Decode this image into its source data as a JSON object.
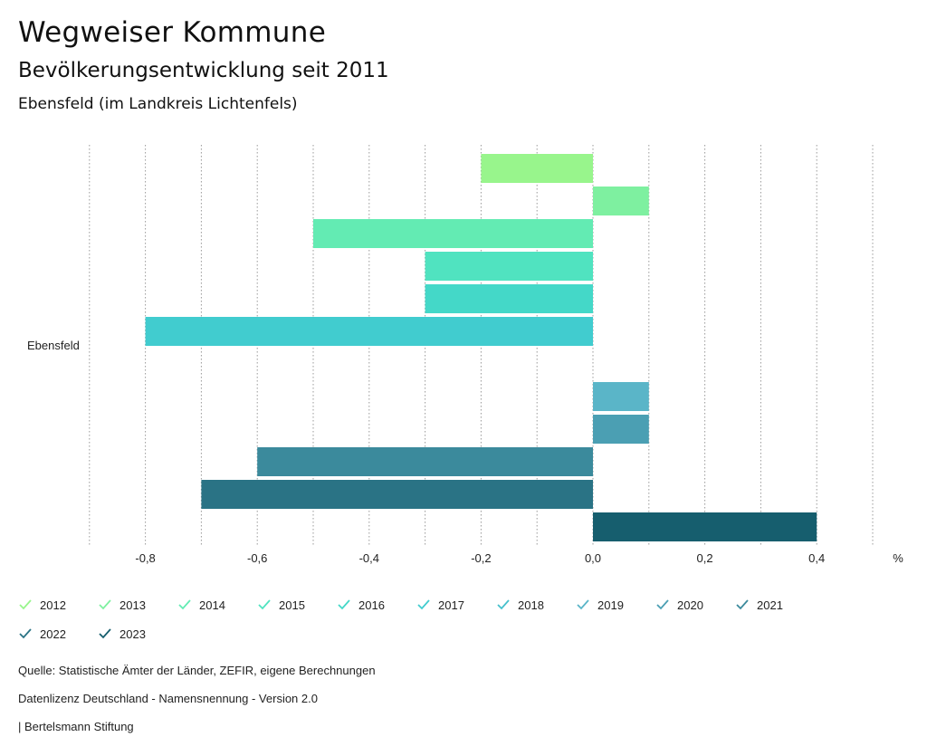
{
  "header": {
    "title": "Wegweiser Kommune",
    "subtitle": "Bevölkerungsentwicklung seit 2011",
    "region": "Ebensfeld (im Landkreis Lichtenfels)"
  },
  "chart_data": {
    "type": "bar",
    "orientation": "horizontal",
    "categories": [
      "Ebensfeld"
    ],
    "series": [
      {
        "name": "2012",
        "values": [
          -0.2
        ],
        "color": "#98f58c"
      },
      {
        "name": "2013",
        "values": [
          0.1
        ],
        "color": "#7ef0a0"
      },
      {
        "name": "2014",
        "values": [
          -0.5
        ],
        "color": "#63ebb3"
      },
      {
        "name": "2015",
        "values": [
          -0.3
        ],
        "color": "#50e3c0"
      },
      {
        "name": "2016",
        "values": [
          -0.3
        ],
        "color": "#44d8c8"
      },
      {
        "name": "2017",
        "values": [
          -0.8
        ],
        "color": "#41cccf"
      },
      {
        "name": "2018",
        "values": [
          0.0
        ],
        "color": "#45c0cc"
      },
      {
        "name": "2019",
        "values": [
          0.1
        ],
        "color": "#5ab5c8"
      },
      {
        "name": "2020",
        "values": [
          0.1
        ],
        "color": "#4b9fb3"
      },
      {
        "name": "2021",
        "values": [
          -0.6
        ],
        "color": "#3b8a9c"
      },
      {
        "name": "2022",
        "values": [
          -0.7
        ],
        "color": "#2a7385"
      },
      {
        "name": "2023",
        "values": [
          0.4
        ],
        "color": "#165e6e"
      }
    ],
    "xlim": [
      -0.9,
      0.5
    ],
    "xticks": [
      -0.8,
      -0.6,
      -0.4,
      -0.2,
      0.0,
      0.2,
      0.4
    ],
    "xtick_labels": [
      "-0,8",
      "-0,6",
      "-0,4",
      "-0,2",
      "0,0",
      "0,2",
      "0,4"
    ],
    "grid_values": [
      -0.9,
      -0.8,
      -0.7,
      -0.6,
      -0.5,
      -0.4,
      -0.3,
      -0.2,
      -0.1,
      0.0,
      0.1,
      0.2,
      0.3,
      0.4,
      0.5
    ],
    "unit_label": "%",
    "legend_position": "bottom"
  },
  "footer": {
    "source": "Quelle: Statistische Ämter der Länder, ZEFIR, eigene Berechnungen",
    "license": "Datenlizenz Deutschland - Namensnennung - Version 2.0",
    "brand": "| Bertelsmann Stiftung"
  }
}
